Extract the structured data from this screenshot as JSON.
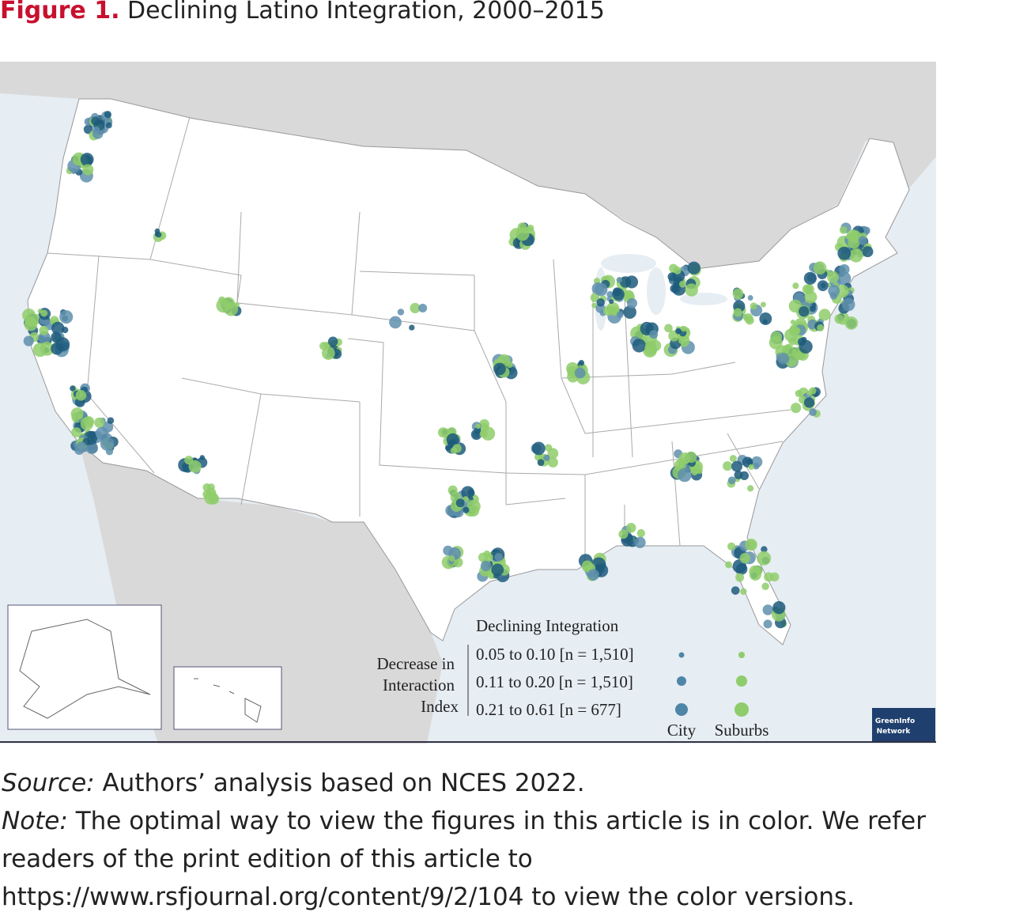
{
  "header": {
    "figure_label": "Figure 1.",
    "title": "Declining Latino Integration, 2000–2015"
  },
  "legend": {
    "title": "Declining Integration",
    "side_label": [
      "Decrease in",
      "Interaction",
      "Index"
    ],
    "rows": [
      "0.05 to 0.10 [n = 1,510]",
      "0.11 to 0.20 [n = 1,510]",
      "0.21 to 0.61 [n = 677]"
    ],
    "columns": [
      "City",
      "Suburbs"
    ]
  },
  "logo": [
    "GreenInfo",
    "Network"
  ],
  "footer": {
    "source_label": "Source:",
    "source": "Authors’ analysis based on NCES 2022.",
    "note_label": "Note:",
    "note": "The optimal way to view the figures in this article is in color. We refer readers of the print edition of this article to https://www.rsfjournal.org/content/9/2/104 to view the color versions."
  }
}
